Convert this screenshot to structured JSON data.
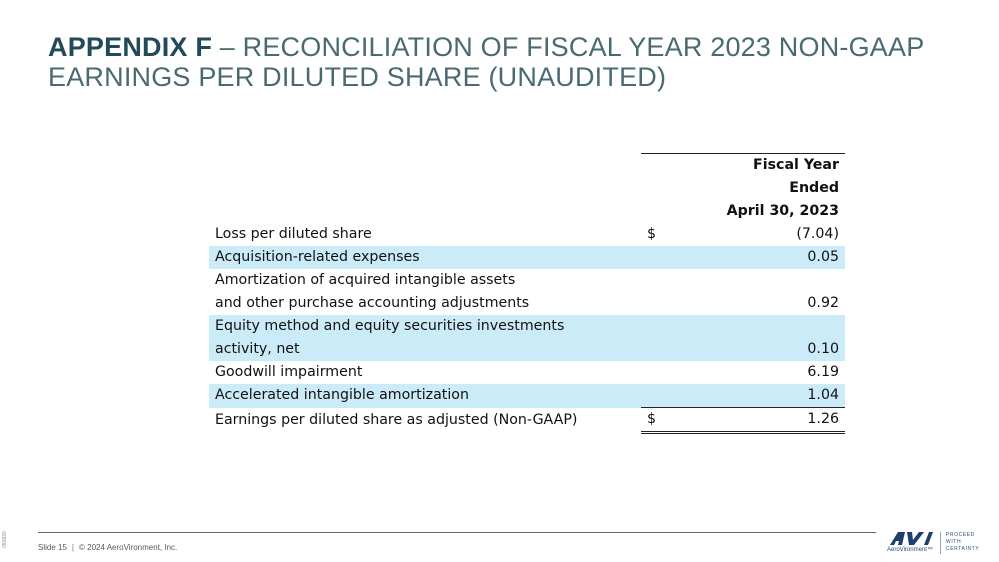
{
  "title": {
    "bold": "APPENDIX F",
    "rest": " – RECONCILIATION OF FISCAL YEAR 2023 NON-GAAP EARNINGS PER DILUTED SHARE (UNAUDITED)"
  },
  "table": {
    "header": [
      "Fiscal Year",
      "Ended",
      "April 30, 2023"
    ],
    "rows": [
      {
        "label": "Loss per diluted share",
        "dollar": "$",
        "value": "(7.04)"
      },
      {
        "label": "Acquisition-related expenses",
        "value": "0.05"
      },
      {
        "label_lines": [
          "Amortization  of acquired intangible assets",
          "and other purchase accounting adjustments"
        ],
        "value": "0.92"
      },
      {
        "label_lines": [
          "Equity method and equity securities investments",
          "activity, net"
        ],
        "value": "0.10"
      },
      {
        "label": "Goodwill impairment",
        "value": "6.19"
      },
      {
        "label": "Accelerated intangible amortization",
        "value": "1.04"
      },
      {
        "label": "Earnings per diluted share as adjusted (Non-GAAP)",
        "dollar": "$",
        "value": "1.26"
      }
    ]
  },
  "footer": {
    "slide": "Slide 15",
    "separator": "|",
    "copyright": "© 2024 AeroVironment, Inc.",
    "side_id": "050820"
  },
  "logo": {
    "mark": "AV",
    "word": "AeroVironment™",
    "tagline": [
      "PROCEED",
      "WITH",
      "CERTAINTY"
    ]
  },
  "colors": {
    "highlight": "#ccebf8",
    "title_bold": "#234a5a",
    "title_text": "#4a6a72"
  }
}
